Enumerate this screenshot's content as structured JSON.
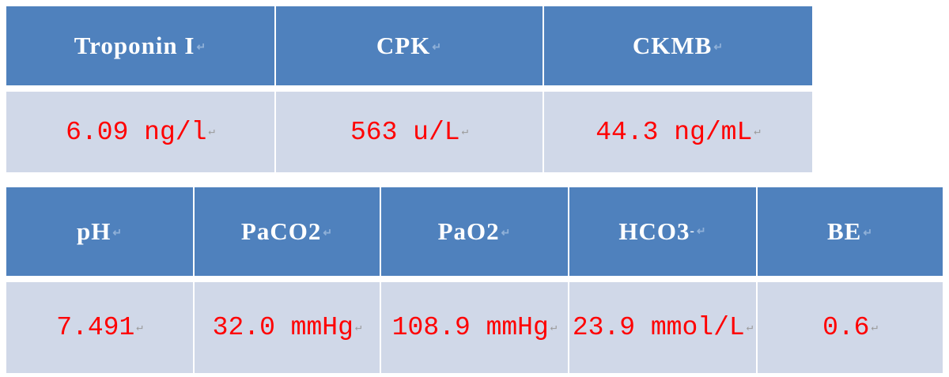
{
  "colors": {
    "header_bg": "#4f81bd",
    "value_bg": "#d0d8e8",
    "value_text": "#ff0000",
    "header_text": "#ffffff"
  },
  "table1": {
    "headers": [
      "Troponin I",
      "CPK",
      "CKMB"
    ],
    "values": [
      "6.09 ng/l",
      "563 u/L",
      "44.3 ng/mL"
    ]
  },
  "table2": {
    "headers": [
      "pH",
      "PaCO2",
      "PaO2",
      "HCO3",
      "BE"
    ],
    "hco3_superscript": "-",
    "values": [
      "7.491",
      "32.0 mmHg",
      "108.9 mmHg",
      "23.9 mmol/L",
      "0.6"
    ]
  }
}
